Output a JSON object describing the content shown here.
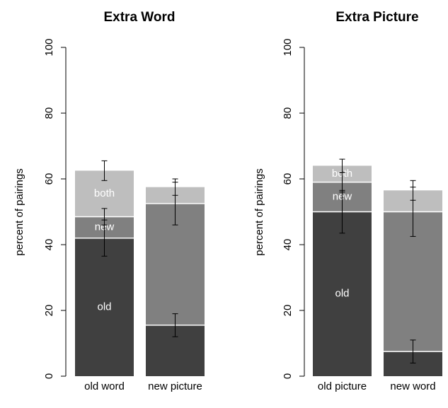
{
  "colors": {
    "old": "#404040",
    "new": "#808080",
    "both": "#bebebe",
    "axis": "#000000",
    "segment_divider": "#ffffff"
  },
  "chart_data": [
    {
      "type": "bar",
      "stacked": true,
      "title": "Extra Word",
      "ylabel": "percent of pairings",
      "ylim": [
        0,
        100
      ],
      "yticks": [
        "0",
        "20",
        "40",
        "60",
        "80",
        "100"
      ],
      "categories": [
        "old word",
        "new picture"
      ],
      "series": [
        {
          "key": "old",
          "values": [
            42,
            15.5
          ]
        },
        {
          "key": "new",
          "values": [
            6.5,
            37
          ]
        },
        {
          "key": "both",
          "values": [
            14,
            5
          ]
        }
      ],
      "segment_labels": [
        {
          "category": 0,
          "series": "old",
          "text": "old"
        },
        {
          "category": 0,
          "series": "new",
          "text": "new"
        },
        {
          "category": 0,
          "series": "both",
          "text": "both"
        }
      ],
      "error_bars": [
        {
          "category": 0,
          "center": 42,
          "low": 36.5,
          "high": 47.5
        },
        {
          "category": 0,
          "center": 48.5,
          "low": 46,
          "high": 51
        },
        {
          "category": 0,
          "center": 62.5,
          "low": 59.5,
          "high": 65.5
        },
        {
          "category": 1,
          "center": 15.5,
          "low": 12,
          "high": 19
        },
        {
          "category": 1,
          "center": 52.5,
          "low": 46,
          "high": 59
        },
        {
          "category": 1,
          "center": 57.5,
          "low": 55,
          "high": 60
        }
      ]
    },
    {
      "type": "bar",
      "stacked": true,
      "title": "Extra Picture",
      "ylabel": "percent of pairings",
      "ylim": [
        0,
        100
      ],
      "yticks": [
        "0",
        "20",
        "40",
        "60",
        "80",
        "100"
      ],
      "categories": [
        "old picture",
        "new word"
      ],
      "series": [
        {
          "key": "old",
          "values": [
            50,
            7.5
          ]
        },
        {
          "key": "new",
          "values": [
            9,
            42.5
          ]
        },
        {
          "key": "both",
          "values": [
            5,
            6.5
          ]
        }
      ],
      "segment_labels": [
        {
          "category": 0,
          "series": "old",
          "text": "old"
        },
        {
          "category": 0,
          "series": "new",
          "text": "new"
        },
        {
          "category": 0,
          "series": "both",
          "text": "both"
        }
      ],
      "error_bars": [
        {
          "category": 0,
          "center": 50,
          "low": 43.5,
          "high": 56.5
        },
        {
          "category": 0,
          "center": 59,
          "low": 56,
          "high": 62
        },
        {
          "category": 0,
          "center": 64,
          "low": 62,
          "high": 66
        },
        {
          "category": 1,
          "center": 7.5,
          "low": 4,
          "high": 11
        },
        {
          "category": 1,
          "center": 50,
          "low": 42.5,
          "high": 57.5
        },
        {
          "category": 1,
          "center": 56.5,
          "low": 53.5,
          "high": 59.5
        }
      ]
    }
  ]
}
